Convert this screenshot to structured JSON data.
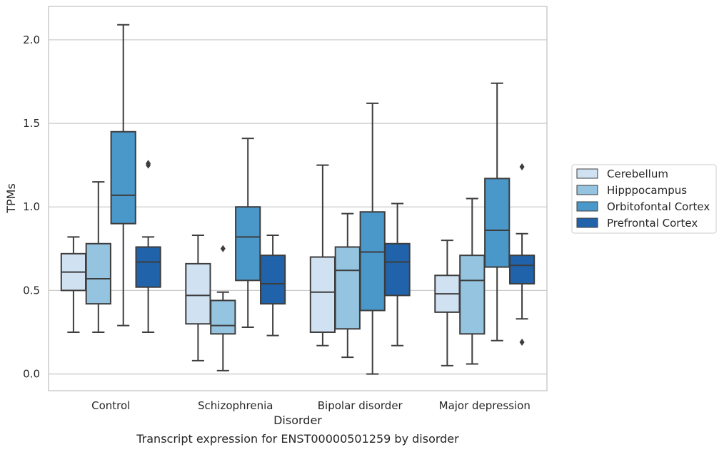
{
  "caption": "Transcript expression for ENST00000501259 by disorder",
  "chart_data": {
    "type": "box",
    "xlabel": "Disorder",
    "ylabel": "TPMs",
    "ylim": [
      -0.1,
      2.2
    ],
    "yticks": [
      0.0,
      0.5,
      1.0,
      1.5,
      2.0
    ],
    "ytick_labels": [
      "0.0",
      "0.5",
      "1.0",
      "1.5",
      "2.0"
    ],
    "grid": "horizontal",
    "legend_position": "right",
    "categories": [
      "Control",
      "Schizophrenia",
      "Bipolar disorder",
      "Major depression"
    ],
    "series": [
      {
        "name": "Cerebellum",
        "color": "#d0e1f2",
        "boxes": [
          {
            "whislo": 0.25,
            "q1": 0.5,
            "med": 0.61,
            "q3": 0.72,
            "whishi": 0.82,
            "fliers": []
          },
          {
            "whislo": 0.08,
            "q1": 0.3,
            "med": 0.47,
            "q3": 0.66,
            "whishi": 0.83,
            "fliers": []
          },
          {
            "whislo": 0.17,
            "q1": 0.25,
            "med": 0.49,
            "q3": 0.7,
            "whishi": 1.25,
            "fliers": []
          },
          {
            "whislo": 0.05,
            "q1": 0.37,
            "med": 0.48,
            "q3": 0.59,
            "whishi": 0.8,
            "fliers": []
          }
        ]
      },
      {
        "name": "Hipppocampus",
        "color": "#94c4df",
        "boxes": [
          {
            "whislo": 0.25,
            "q1": 0.42,
            "med": 0.57,
            "q3": 0.78,
            "whishi": 1.15,
            "fliers": []
          },
          {
            "whislo": 0.02,
            "q1": 0.24,
            "med": 0.29,
            "q3": 0.44,
            "whishi": 0.49,
            "fliers": [
              0.75
            ]
          },
          {
            "whislo": 0.1,
            "q1": 0.27,
            "med": 0.62,
            "q3": 0.76,
            "whishi": 0.96,
            "fliers": []
          },
          {
            "whislo": 0.06,
            "q1": 0.24,
            "med": 0.56,
            "q3": 0.71,
            "whishi": 1.05,
            "fliers": []
          }
        ]
      },
      {
        "name": "Orbitofontal Cortex",
        "color": "#4a98c9",
        "boxes": [
          {
            "whislo": 0.29,
            "q1": 0.9,
            "med": 1.07,
            "q3": 1.45,
            "whishi": 2.09,
            "fliers": []
          },
          {
            "whislo": 0.28,
            "q1": 0.56,
            "med": 0.82,
            "q3": 1.0,
            "whishi": 1.41,
            "fliers": []
          },
          {
            "whislo": 0.0,
            "q1": 0.38,
            "med": 0.73,
            "q3": 0.97,
            "whishi": 1.62,
            "fliers": []
          },
          {
            "whislo": 0.2,
            "q1": 0.64,
            "med": 0.86,
            "q3": 1.17,
            "whishi": 1.74,
            "fliers": []
          }
        ]
      },
      {
        "name": "Prefrontal Cortex",
        "color": "#2163aa",
        "boxes": [
          {
            "whislo": 0.25,
            "q1": 0.52,
            "med": 0.67,
            "q3": 0.76,
            "whishi": 0.82,
            "fliers": [
              1.25,
              1.26
            ]
          },
          {
            "whislo": 0.23,
            "q1": 0.42,
            "med": 0.54,
            "q3": 0.71,
            "whishi": 0.83,
            "fliers": []
          },
          {
            "whislo": 0.17,
            "q1": 0.47,
            "med": 0.67,
            "q3": 0.78,
            "whishi": 1.02,
            "fliers": []
          },
          {
            "whislo": 0.33,
            "q1": 0.54,
            "med": 0.65,
            "q3": 0.71,
            "whishi": 0.84,
            "fliers": [
              1.24,
              0.19
            ]
          }
        ]
      }
    ]
  }
}
